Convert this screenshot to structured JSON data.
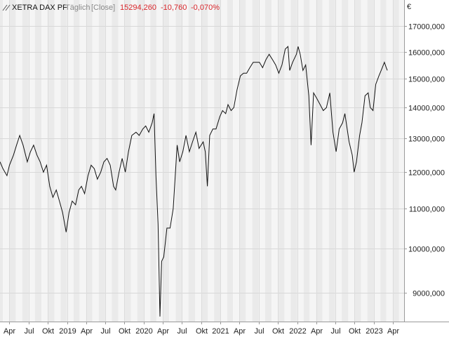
{
  "header": {
    "title": "XETRA DAX PF",
    "interval": "Täglich",
    "mode": "[Close]",
    "last": "15294,260",
    "change": "-10,760",
    "change_pct": "-0,070%"
  },
  "colors": {
    "line": "#111111",
    "negative": "#d9262b",
    "muted": "#8a8a8a",
    "band_a": "#f5f5f5",
    "band_b": "#eaeaea"
  },
  "chart_data": {
    "type": "line",
    "title": "XETRA DAX PF",
    "y_unit": "€",
    "y_scale": "log",
    "ylim": [
      8400,
      18100
    ],
    "y_ticks": [
      {
        "v": 9000,
        "label": "9000,000"
      },
      {
        "v": 10000,
        "label": "10000,000"
      },
      {
        "v": 11000,
        "label": "11000,000"
      },
      {
        "v": 12000,
        "label": "12000,000"
      },
      {
        "v": 13000,
        "label": "13000,000"
      },
      {
        "v": 14000,
        "label": "14000,000"
      },
      {
        "v": 15000,
        "label": "15000,000"
      },
      {
        "v": 16000,
        "label": "16000,000"
      },
      {
        "v": 17000,
        "label": "17000,000"
      }
    ],
    "xlim": [
      "2018-02-15",
      "2023-05-25"
    ],
    "x_ticks": [
      {
        "date": "2018-04-01",
        "label": "Apr"
      },
      {
        "date": "2018-07-01",
        "label": "Jul"
      },
      {
        "date": "2018-10-01",
        "label": "Okt"
      },
      {
        "date": "2019-01-01",
        "label": "2019"
      },
      {
        "date": "2019-04-01",
        "label": "Apr"
      },
      {
        "date": "2019-07-01",
        "label": "Jul"
      },
      {
        "date": "2019-10-01",
        "label": "Okt"
      },
      {
        "date": "2020-01-01",
        "label": "2020"
      },
      {
        "date": "2020-04-01",
        "label": "Apr"
      },
      {
        "date": "2020-07-01",
        "label": "Jul"
      },
      {
        "date": "2020-10-01",
        "label": "Okt"
      },
      {
        "date": "2021-01-01",
        "label": "2021"
      },
      {
        "date": "2021-04-01",
        "label": "Apr"
      },
      {
        "date": "2021-07-01",
        "label": "Jul"
      },
      {
        "date": "2021-10-01",
        "label": "Okt"
      },
      {
        "date": "2022-01-01",
        "label": "2022"
      },
      {
        "date": "2022-04-01",
        "label": "Apr"
      },
      {
        "date": "2022-07-01",
        "label": "Jul"
      },
      {
        "date": "2022-10-01",
        "label": "Okt"
      },
      {
        "date": "2023-01-01",
        "label": "2023"
      },
      {
        "date": "2023-04-01",
        "label": "Apr"
      }
    ],
    "grid": true,
    "series": [
      {
        "points": [
          [
            "2018-02-15",
            12300
          ],
          [
            "2018-03-01",
            12100
          ],
          [
            "2018-03-20",
            11900
          ],
          [
            "2018-04-01",
            12200
          ],
          [
            "2018-04-20",
            12500
          ],
          [
            "2018-05-05",
            12800
          ],
          [
            "2018-05-20",
            13100
          ],
          [
            "2018-06-05",
            12800
          ],
          [
            "2018-06-25",
            12300
          ],
          [
            "2018-07-10",
            12600
          ],
          [
            "2018-07-25",
            12800
          ],
          [
            "2018-08-10",
            12500
          ],
          [
            "2018-08-25",
            12300
          ],
          [
            "2018-09-10",
            12000
          ],
          [
            "2018-09-25",
            12200
          ],
          [
            "2018-10-10",
            11600
          ],
          [
            "2018-10-25",
            11300
          ],
          [
            "2018-11-10",
            11500
          ],
          [
            "2018-11-25",
            11200
          ],
          [
            "2018-12-10",
            10900
          ],
          [
            "2018-12-27",
            10400
          ],
          [
            "2019-01-10",
            10900
          ],
          [
            "2019-01-25",
            11200
          ],
          [
            "2019-02-10",
            11100
          ],
          [
            "2019-02-25",
            11500
          ],
          [
            "2019-03-10",
            11600
          ],
          [
            "2019-03-25",
            11400
          ],
          [
            "2019-04-10",
            11900
          ],
          [
            "2019-04-25",
            12200
          ],
          [
            "2019-05-10",
            12100
          ],
          [
            "2019-05-25",
            11800
          ],
          [
            "2019-06-10",
            12000
          ],
          [
            "2019-06-25",
            12300
          ],
          [
            "2019-07-10",
            12400
          ],
          [
            "2019-07-25",
            12200
          ],
          [
            "2019-08-10",
            11600
          ],
          [
            "2019-08-20",
            11500
          ],
          [
            "2019-09-05",
            12000
          ],
          [
            "2019-09-20",
            12400
          ],
          [
            "2019-10-05",
            12000
          ],
          [
            "2019-10-20",
            12600
          ],
          [
            "2019-11-05",
            13100
          ],
          [
            "2019-11-25",
            13200
          ],
          [
            "2019-12-10",
            13100
          ],
          [
            "2019-12-27",
            13300
          ],
          [
            "2020-01-10",
            13400
          ],
          [
            "2020-01-25",
            13200
          ],
          [
            "2020-02-10",
            13500
          ],
          [
            "2020-02-19",
            13800
          ],
          [
            "2020-02-28",
            11900
          ],
          [
            "2020-03-09",
            10600
          ],
          [
            "2020-03-18",
            8500
          ],
          [
            "2020-03-26",
            9700
          ],
          [
            "2020-04-05",
            9800
          ],
          [
            "2020-04-20",
            10500
          ],
          [
            "2020-05-05",
            10500
          ],
          [
            "2020-05-20",
            11000
          ],
          [
            "2020-06-08",
            12800
          ],
          [
            "2020-06-20",
            12300
          ],
          [
            "2020-07-05",
            12600
          ],
          [
            "2020-07-20",
            13100
          ],
          [
            "2020-08-05",
            12600
          ],
          [
            "2020-08-20",
            12900
          ],
          [
            "2020-09-05",
            13200
          ],
          [
            "2020-09-20",
            12700
          ],
          [
            "2020-10-10",
            12900
          ],
          [
            "2020-10-20",
            12600
          ],
          [
            "2020-10-30",
            11600
          ],
          [
            "2020-11-10",
            13100
          ],
          [
            "2020-11-25",
            13300
          ],
          [
            "2020-12-10",
            13300
          ],
          [
            "2020-12-28",
            13700
          ],
          [
            "2021-01-10",
            13900
          ],
          [
            "2021-01-25",
            13800
          ],
          [
            "2021-02-05",
            14100
          ],
          [
            "2021-02-20",
            13900
          ],
          [
            "2021-03-05",
            14000
          ],
          [
            "2021-03-20",
            14600
          ],
          [
            "2021-04-05",
            15100
          ],
          [
            "2021-04-20",
            15200
          ],
          [
            "2021-05-05",
            15200
          ],
          [
            "2021-05-20",
            15400
          ],
          [
            "2021-06-05",
            15600
          ],
          [
            "2021-06-20",
            15600
          ],
          [
            "2021-07-05",
            15600
          ],
          [
            "2021-07-20",
            15400
          ],
          [
            "2021-08-05",
            15700
          ],
          [
            "2021-08-20",
            15900
          ],
          [
            "2021-09-05",
            15700
          ],
          [
            "2021-09-20",
            15500
          ],
          [
            "2021-10-05",
            15200
          ],
          [
            "2021-10-20",
            15500
          ],
          [
            "2021-11-05",
            16100
          ],
          [
            "2021-11-18",
            16200
          ],
          [
            "2021-11-26",
            15300
          ],
          [
            "2021-12-10",
            15600
          ],
          [
            "2021-12-28",
            15900
          ],
          [
            "2022-01-05",
            16200
          ],
          [
            "2022-01-15",
            15900
          ],
          [
            "2022-01-28",
            15300
          ],
          [
            "2022-02-10",
            15500
          ],
          [
            "2022-02-25",
            14400
          ],
          [
            "2022-03-08",
            12800
          ],
          [
            "2022-03-20",
            14500
          ],
          [
            "2022-04-05",
            14300
          ],
          [
            "2022-04-20",
            14100
          ],
          [
            "2022-05-05",
            13900
          ],
          [
            "2022-05-20",
            14000
          ],
          [
            "2022-06-05",
            14500
          ],
          [
            "2022-06-20",
            13200
          ],
          [
            "2022-07-05",
            12600
          ],
          [
            "2022-07-20",
            13300
          ],
          [
            "2022-08-05",
            13500
          ],
          [
            "2022-08-16",
            13800
          ],
          [
            "2022-09-05",
            12900
          ],
          [
            "2022-09-20",
            12500
          ],
          [
            "2022-09-29",
            12000
          ],
          [
            "2022-10-10",
            12300
          ],
          [
            "2022-10-25",
            13100
          ],
          [
            "2022-11-05",
            13500
          ],
          [
            "2022-11-20",
            14400
          ],
          [
            "2022-12-05",
            14500
          ],
          [
            "2022-12-15",
            14000
          ],
          [
            "2022-12-28",
            13900
          ],
          [
            "2023-01-10",
            14800
          ],
          [
            "2023-01-25",
            15100
          ],
          [
            "2023-02-10",
            15400
          ],
          [
            "2023-02-20",
            15600
          ],
          [
            "2023-03-01",
            15400
          ],
          [
            "2023-03-06",
            15300
          ]
        ]
      }
    ]
  }
}
